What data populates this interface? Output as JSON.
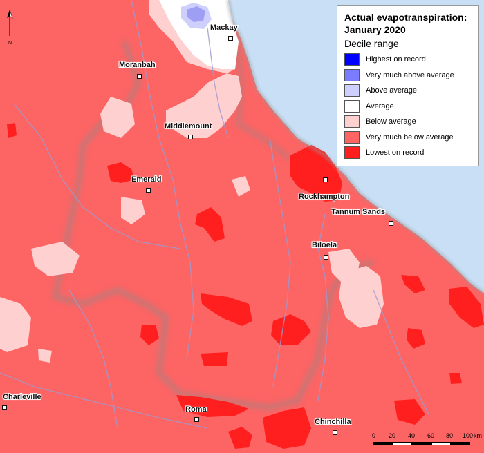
{
  "title_line1": "Actual evapotranspiration:",
  "title_line2": "January 2020",
  "legend_subtitle": "Decile range",
  "legend": [
    {
      "label": "Highest on record",
      "color": "#0000ff"
    },
    {
      "label": "Very much above average",
      "color": "#7b7bff"
    },
    {
      "label": "Above average",
      "color": "#cfcffd"
    },
    {
      "label": "Average",
      "color": "#ffffff"
    },
    {
      "label": "Below average",
      "color": "#ffd0d0"
    },
    {
      "label": "Very much below average",
      "color": "#fd6464"
    },
    {
      "label": "Lowest on record",
      "color": "#ff1f1f"
    }
  ],
  "places": {
    "mackay": "Mackay",
    "moranbah": "Moranbah",
    "middlemount": "Middlemount",
    "emerald": "Emerald",
    "rockhampton": "Rockhampton",
    "tannum_sands": "Tannum Sands",
    "biloela": "Biloela",
    "charleville": "Charleville",
    "roma": "Roma",
    "chinchilla": "Chinchilla"
  },
  "north_label": "N",
  "scale": {
    "ticks": [
      "0",
      "20",
      "40",
      "60",
      "80",
      "100"
    ],
    "unit": "km"
  },
  "colors": {
    "sea": "#c8dff5",
    "boundary": "#8f8fa8"
  }
}
